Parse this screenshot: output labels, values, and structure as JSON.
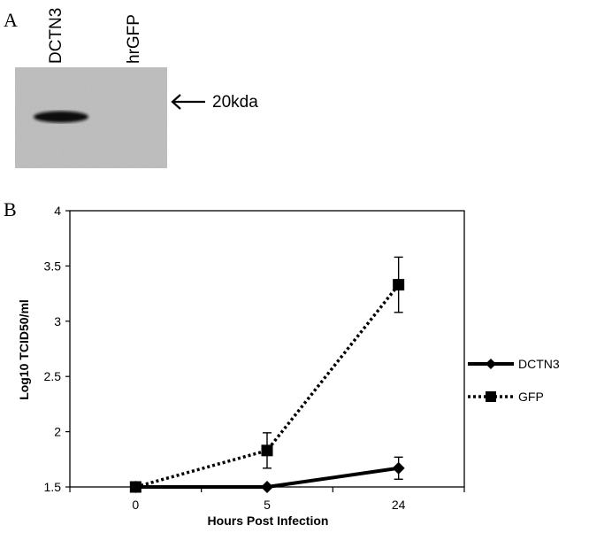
{
  "panel_a": {
    "label": "A",
    "lanes": [
      "DCTN3",
      "hrGFP"
    ],
    "marker_label": "20kda"
  },
  "panel_b": {
    "label": "B"
  },
  "chart_data": {
    "type": "line",
    "x": [
      "0",
      "5",
      "24"
    ],
    "xlabel": "Hours Post Infection",
    "ylabel": "Log10 TCID50/ml",
    "ylim": [
      1.5,
      4
    ],
    "yticks": [
      "1.5",
      "2",
      "2.5",
      "3",
      "3.5",
      "4"
    ],
    "grid": false,
    "legend_position": "right",
    "series": [
      {
        "name": "DCTN3",
        "values": [
          1.5,
          1.5,
          1.67
        ],
        "errors": [
          0,
          0,
          0.1
        ],
        "marker": "diamond",
        "line_style": "solid",
        "color": "#000000"
      },
      {
        "name": "GFP",
        "values": [
          1.5,
          1.83,
          3.33
        ],
        "errors": [
          0,
          0.16,
          0.25
        ],
        "marker": "square",
        "line_style": "dotted",
        "color": "#000000"
      }
    ]
  }
}
